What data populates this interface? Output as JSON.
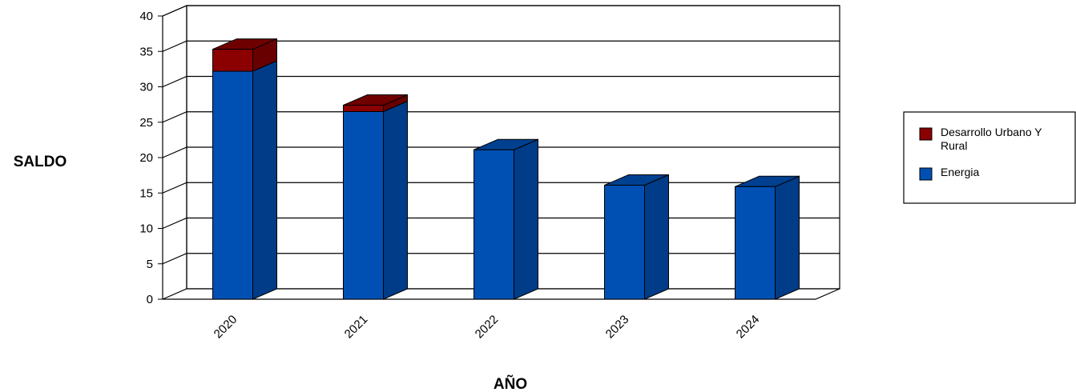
{
  "chart_data": {
    "type": "bar",
    "stacked": true,
    "three_d": true,
    "title": "",
    "xlabel": "AÑO",
    "ylabel": "SALDO",
    "categories": [
      "2020",
      "2021",
      "2022",
      "2023",
      "2024"
    ],
    "ylim": [
      0,
      40
    ],
    "yticks": [
      "0",
      "5",
      "10",
      "15",
      "20",
      "25",
      "30",
      "35",
      "40"
    ],
    "grid": true,
    "legend_position": "right",
    "series": [
      {
        "name": "Energia",
        "values": [
          32.2,
          26.5,
          21.1,
          16.1,
          15.9
        ],
        "color": "#0050B4"
      },
      {
        "name": "Desarrollo Urbano Y Rural",
        "values": [
          3.1,
          0.9,
          0,
          0,
          0
        ],
        "color": "#8B0000"
      }
    ],
    "legend": {
      "items": [
        {
          "label_lines": [
            "Desarrollo Urbano Y",
            "Rural"
          ],
          "color": "#8B0000"
        },
        {
          "label_lines": [
            "Energia"
          ],
          "color": "#0050B4"
        }
      ]
    }
  }
}
